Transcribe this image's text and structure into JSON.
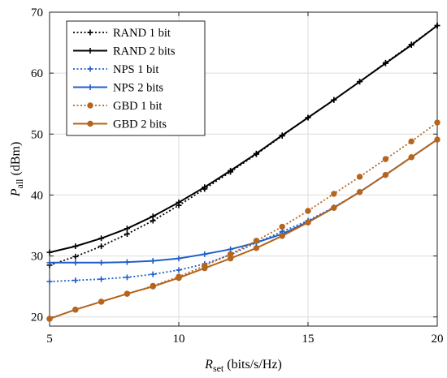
{
  "chart_data": {
    "type": "line",
    "xlabel_main": "R",
    "xlabel_sub": "set",
    "xlabel_unit": " (bits/s/Hz)",
    "ylabel_main": "P",
    "ylabel_sub": "all",
    "ylabel_unit": " (dBm)",
    "xlim": [
      5,
      20
    ],
    "ylim": [
      18.5,
      70
    ],
    "xticks": [
      5,
      10,
      15,
      20
    ],
    "yticks": [
      20,
      30,
      40,
      50,
      60,
      70
    ],
    "grid": true,
    "legend_position": "top-left",
    "x": [
      5,
      6,
      7,
      8,
      9,
      10,
      11,
      12,
      13,
      14,
      15,
      16,
      17,
      18,
      19,
      20
    ],
    "series": [
      {
        "name": "RAND 1 bit",
        "color": "#000000",
        "dash": "dotted",
        "marker": "plus",
        "values": [
          28.5,
          29.9,
          31.6,
          33.6,
          35.8,
          38.3,
          41.0,
          43.8,
          46.7,
          49.7,
          52.7,
          55.6,
          58.6,
          61.7,
          64.7,
          67.8
        ]
      },
      {
        "name": "RAND 2 bits",
        "color": "#000000",
        "dash": "solid",
        "marker": "plus",
        "values": [
          30.6,
          31.6,
          32.9,
          34.5,
          36.5,
          38.8,
          41.3,
          44.0,
          46.8,
          49.8,
          52.7,
          55.6,
          58.6,
          61.6,
          64.6,
          67.8
        ]
      },
      {
        "name": "NPS 1 bit",
        "color": "#1f5fc8",
        "dash": "dotted",
        "marker": "plus",
        "values": [
          25.8,
          26.0,
          26.2,
          26.5,
          27.0,
          27.7,
          28.7,
          30.2,
          32.2,
          34.0,
          35.8,
          38.0,
          40.5,
          43.3,
          46.2,
          49.1
        ]
      },
      {
        "name": "NPS 2 bits",
        "color": "#1f5fc8",
        "dash": "solid",
        "marker": "plus",
        "values": [
          28.9,
          28.9,
          28.9,
          29.0,
          29.2,
          29.6,
          30.3,
          31.1,
          32.2,
          33.6,
          35.6,
          37.9,
          40.5,
          43.3,
          46.2,
          49.1
        ]
      },
      {
        "name": "GBD 1 bit",
        "color": "#b5651d",
        "dash": "dotted",
        "marker": "circle",
        "values": [
          19.7,
          21.2,
          22.5,
          23.8,
          25.1,
          26.6,
          28.4,
          30.3,
          32.5,
          34.8,
          37.4,
          40.2,
          43.0,
          45.9,
          48.8,
          51.9
        ]
      },
      {
        "name": "GBD 2 bits",
        "color": "#b5651d",
        "dash": "solid",
        "marker": "circle",
        "values": [
          19.7,
          21.2,
          22.5,
          23.8,
          25.0,
          26.4,
          28.0,
          29.6,
          31.3,
          33.3,
          35.5,
          37.9,
          40.5,
          43.3,
          46.2,
          49.1
        ]
      }
    ]
  }
}
